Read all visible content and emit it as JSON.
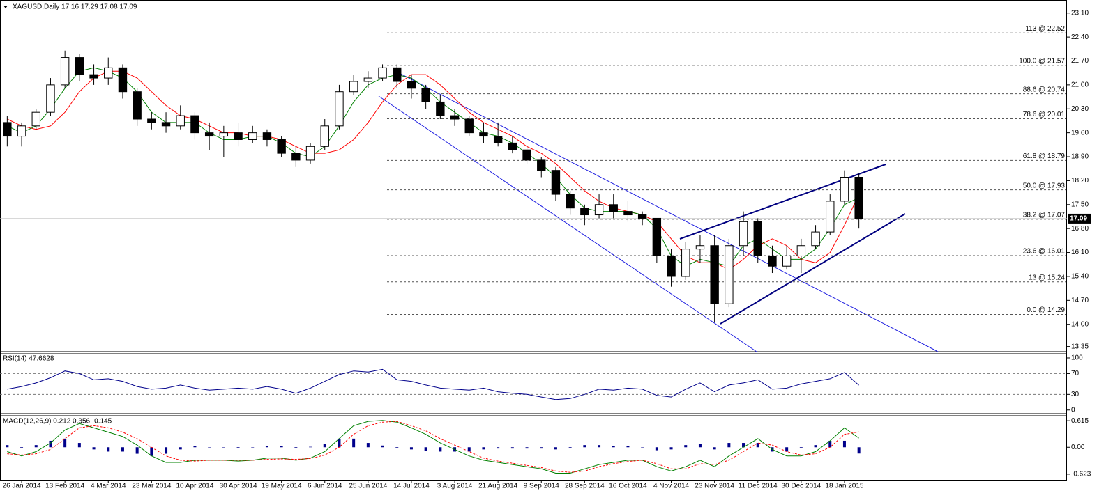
{
  "chart_data": [
    {
      "type": "candlestick",
      "title": "XAGUSD,Daily  17.16 17.29 17.08 17.09",
      "categories": [
        null,
        "26 Jan 2014",
        null,
        null,
        "13 Feb 2014",
        null,
        null,
        "4 Mar 2014",
        null,
        null,
        "23 Mar 2014",
        null,
        null,
        "10 Apr 2014",
        null,
        null,
        "30 Apr 2014",
        null,
        null,
        "19 May 2014",
        null,
        null,
        "6 Jun 2014",
        null,
        null,
        "25 Jun 2014",
        null,
        null,
        "14 Jul 2014",
        null,
        null,
        "3 Aug 2014",
        null,
        null,
        "21 Aug 2014",
        null,
        null,
        "9 Sep 2014",
        null,
        null,
        "28 Sep 2014",
        null,
        null,
        "16 Oct 2014",
        null,
        null,
        "4 Nov 2014",
        null,
        null,
        "23 Nov 2014",
        null,
        null,
        "11 Dec 2014",
        null,
        null,
        "30 Dec 2014",
        null,
        null,
        "18 Jan 2015",
        null
      ],
      "open": [
        19.9,
        19.5,
        19.8,
        20.2,
        21.0,
        21.8,
        21.3,
        21.2,
        21.5,
        20.8,
        20.0,
        19.9,
        19.8,
        20.1,
        19.6,
        19.5,
        19.6,
        19.4,
        19.6,
        19.4,
        19.0,
        18.8,
        19.2,
        19.8,
        20.8,
        21.1,
        21.2,
        21.5,
        21.1,
        20.9,
        20.5,
        20.1,
        20.0,
        19.6,
        19.5,
        19.3,
        19.1,
        18.8,
        18.5,
        17.8,
        17.4,
        17.2,
        17.5,
        17.3,
        17.2,
        17.1,
        16.0,
        15.4,
        16.2,
        16.3,
        14.6,
        16.3,
        17.0,
        16.0,
        15.7,
        16.0,
        16.3,
        16.7,
        17.6,
        18.3
      ],
      "high": [
        20.1,
        19.9,
        20.3,
        21.2,
        22.0,
        21.9,
        21.6,
        21.8,
        21.6,
        20.9,
        20.2,
        20.2,
        20.4,
        20.2,
        19.9,
        19.8,
        19.9,
        19.8,
        19.7,
        19.5,
        19.2,
        19.3,
        20.0,
        21.0,
        21.3,
        21.4,
        21.6,
        21.6,
        21.3,
        21.0,
        20.7,
        20.3,
        20.1,
        19.9,
        19.9,
        19.5,
        19.2,
        18.9,
        18.6,
        17.9,
        17.5,
        17.8,
        17.8,
        17.6,
        17.3,
        17.1,
        16.2,
        16.4,
        16.6,
        16.6,
        16.5,
        17.3,
        17.1,
        16.3,
        16.3,
        16.5,
        16.9,
        17.8,
        18.5,
        18.4
      ],
      "low": [
        19.2,
        19.2,
        19.7,
        20.1,
        20.9,
        21.1,
        21.0,
        21.0,
        20.6,
        19.8,
        19.7,
        19.6,
        19.7,
        19.4,
        19.1,
        18.9,
        19.2,
        19.3,
        19.2,
        18.9,
        18.6,
        18.7,
        19.1,
        19.7,
        20.7,
        20.9,
        21.1,
        20.9,
        20.6,
        20.3,
        20.0,
        19.8,
        19.5,
        19.3,
        19.2,
        19.0,
        18.7,
        18.3,
        17.6,
        17.2,
        16.9,
        17.1,
        17.1,
        17.0,
        16.9,
        15.8,
        15.1,
        15.3,
        15.8,
        14.05,
        14.5,
        16.0,
        15.8,
        15.5,
        15.6,
        15.5,
        16.2,
        16.6,
        17.5,
        16.8
      ],
      "close": [
        19.5,
        19.8,
        20.2,
        21.0,
        21.8,
        21.3,
        21.2,
        21.5,
        20.8,
        20.0,
        19.9,
        19.8,
        20.1,
        19.6,
        19.5,
        19.6,
        19.4,
        19.6,
        19.4,
        19.0,
        18.8,
        19.2,
        19.8,
        20.8,
        21.1,
        21.2,
        21.5,
        21.1,
        20.9,
        20.5,
        20.1,
        20.0,
        19.6,
        19.5,
        19.3,
        19.1,
        18.8,
        18.5,
        17.8,
        17.4,
        17.2,
        17.5,
        17.3,
        17.2,
        17.1,
        16.0,
        15.4,
        16.2,
        16.3,
        14.6,
        16.3,
        17.0,
        16.0,
        15.7,
        16.0,
        16.3,
        16.7,
        17.6,
        18.3,
        17.09
      ],
      "series": [
        {
          "color": "#ff0000",
          "values": [
            20.0,
            19.8,
            19.7,
            19.8,
            20.2,
            20.8,
            21.2,
            21.4,
            21.4,
            21.2,
            20.8,
            20.4,
            20.1,
            20.0,
            19.8,
            19.6,
            19.6,
            19.5,
            19.5,
            19.4,
            19.2,
            19.0,
            19.0,
            19.1,
            19.4,
            19.9,
            20.5,
            21.0,
            21.3,
            21.3,
            21.0,
            20.6,
            20.2,
            19.9,
            19.7,
            19.5,
            19.2,
            19.0,
            18.7,
            18.3,
            17.9,
            17.6,
            17.4,
            17.3,
            17.2,
            17.0,
            16.5,
            16.0,
            15.8,
            15.8,
            15.6,
            15.9,
            16.3,
            16.5,
            16.3,
            15.9,
            15.8,
            16.1,
            16.9,
            17.8
          ]
        },
        {
          "color": "#008000",
          "values": [
            19.8,
            19.6,
            19.8,
            20.3,
            20.9,
            21.4,
            21.5,
            21.4,
            21.2,
            20.8,
            20.2,
            19.9,
            19.9,
            19.9,
            19.6,
            19.4,
            19.4,
            19.5,
            19.5,
            19.3,
            19.0,
            18.9,
            19.2,
            19.8,
            20.5,
            21.0,
            21.2,
            21.3,
            21.2,
            20.9,
            20.5,
            20.2,
            19.9,
            19.6,
            19.5,
            19.3,
            19.0,
            18.7,
            18.3,
            17.8,
            17.4,
            17.3,
            17.3,
            17.3,
            17.2,
            16.8,
            16.0,
            15.7,
            15.9,
            15.8,
            15.7,
            16.3,
            16.5,
            16.2,
            15.9,
            15.9,
            16.2,
            16.8,
            17.5,
            17.7
          ]
        }
      ],
      "current_price": 17.09,
      "fib_levels": [
        {
          "value": 22.52,
          "label": "113 @ 22.52"
        },
        {
          "value": 21.57,
          "label": "100.0 @ 21.57"
        },
        {
          "value": 20.74,
          "label": "88.6 @ 20.74"
        },
        {
          "value": 20.01,
          "label": "78.6 @ 20.01"
        },
        {
          "value": 18.79,
          "label": "61.8 @ 18.79"
        },
        {
          "value": 17.93,
          "label": "50.0 @ 17.93"
        },
        {
          "value": 17.07,
          "label": "38.2 @ 17.07"
        },
        {
          "value": 16.01,
          "label": "23.6 @ 16.01"
        },
        {
          "value": 15.24,
          "label": "13 @ 15.24"
        },
        {
          "value": 14.29,
          "label": "0.0 @ 14.29"
        }
      ],
      "ylim": [
        13.2,
        23.4
      ],
      "yticks": [
        {
          "value": 23.1,
          "label": "23.10"
        },
        {
          "value": 22.4,
          "label": "22.40"
        },
        {
          "value": 21.7,
          "label": "21.70"
        },
        {
          "value": 21.0,
          "label": "21.00"
        },
        {
          "value": 20.3,
          "label": "20.30"
        },
        {
          "value": 19.6,
          "label": "19.60"
        },
        {
          "value": 18.9,
          "label": "18.90"
        },
        {
          "value": 18.2,
          "label": "18.20"
        },
        {
          "value": 17.5,
          "label": "17.50"
        },
        {
          "value": 16.8,
          "label": "16.80"
        },
        {
          "value": 16.1,
          "label": "16.10"
        },
        {
          "value": 15.4,
          "label": "15.40"
        },
        {
          "value": 14.7,
          "label": "14.70"
        },
        {
          "value": 14.0,
          "label": "14.00"
        },
        13.35
      ]
    },
    {
      "type": "line",
      "title": "RSI(14) 47.6628",
      "series": [
        {
          "color": "#00008b",
          "values": [
            40,
            45,
            52,
            62,
            75,
            70,
            58,
            60,
            55,
            45,
            40,
            42,
            48,
            42,
            38,
            40,
            42,
            40,
            45,
            40,
            32,
            42,
            55,
            68,
            75,
            73,
            78,
            58,
            55,
            48,
            42,
            40,
            38,
            42,
            35,
            32,
            30,
            25,
            20,
            22,
            30,
            40,
            38,
            42,
            40,
            28,
            25,
            40,
            52,
            35,
            48,
            52,
            58,
            40,
            42,
            50,
            55,
            60,
            72,
            47.6628
          ]
        }
      ],
      "levels": [
        70,
        30
      ],
      "ylim": [
        -7,
        108
      ],
      "yticks": [
        100,
        70,
        30,
        0
      ]
    },
    {
      "type": "macd",
      "title": "MACD(12,26,9) 0.212 0.356 -0.145",
      "histogram": {
        "color": "#00008b",
        "values": [
          0.05,
          -0.02,
          0.05,
          0.15,
          0.2,
          0.1,
          -0.05,
          -0.1,
          -0.1,
          -0.15,
          -0.2,
          -0.15,
          -0.05,
          0.02,
          0,
          0,
          -0.02,
          0,
          0.03,
          0.02,
          -0.02,
          0.01,
          0.08,
          0.2,
          0.2,
          0.1,
          0.04,
          -0.02,
          -0.05,
          -0.08,
          -0.1,
          -0.1,
          -0.1,
          -0.05,
          -0.03,
          -0.03,
          -0.03,
          -0.03,
          -0.05,
          -0.02,
          0.05,
          0.05,
          0.03,
          0.03,
          0,
          -0.07,
          -0.05,
          0.05,
          0.08,
          -0.05,
          0.1,
          0.1,
          0.1,
          -0.1,
          -0.1,
          -0.02,
          0.05,
          0.15,
          0.15,
          -0.145
        ]
      },
      "series": [
        {
          "color": "#008000",
          "values": [
            -0.1,
            -0.2,
            -0.1,
            0.1,
            0.4,
            0.55,
            0.45,
            0.35,
            0.25,
            0.05,
            -0.2,
            -0.35,
            -0.35,
            -0.3,
            -0.3,
            -0.3,
            -0.32,
            -0.3,
            -0.25,
            -0.25,
            -0.3,
            -0.25,
            -0.1,
            0.2,
            0.5,
            0.6,
            0.62,
            0.58,
            0.45,
            0.3,
            0.1,
            -0.05,
            -0.2,
            -0.3,
            -0.35,
            -0.4,
            -0.45,
            -0.5,
            -0.6,
            -0.6,
            -0.5,
            -0.4,
            -0.35,
            -0.3,
            -0.3,
            -0.45,
            -0.55,
            -0.45,
            -0.3,
            -0.45,
            -0.2,
            0.0,
            0.2,
            -0.05,
            -0.2,
            -0.2,
            -0.1,
            0.15,
            0.45,
            0.212
          ]
        },
        {
          "color": "#ff0000",
          "dashed": true,
          "values": [
            -0.15,
            -0.18,
            -0.15,
            -0.05,
            0.2,
            0.45,
            0.5,
            0.45,
            0.35,
            0.2,
            0.0,
            -0.2,
            -0.3,
            -0.32,
            -0.3,
            -0.3,
            -0.3,
            -0.3,
            -0.28,
            -0.27,
            -0.28,
            -0.26,
            -0.18,
            0.0,
            0.3,
            0.5,
            0.58,
            0.6,
            0.5,
            0.38,
            0.2,
            0.05,
            -0.1,
            -0.25,
            -0.32,
            -0.37,
            -0.42,
            -0.47,
            -0.55,
            -0.58,
            -0.55,
            -0.45,
            -0.38,
            -0.33,
            -0.3,
            -0.38,
            -0.5,
            -0.5,
            -0.38,
            -0.4,
            -0.3,
            -0.1,
            0.1,
            0.05,
            -0.1,
            -0.18,
            -0.15,
            0.0,
            0.3,
            0.356
          ]
        }
      ],
      "ylim": [
        -0.77,
        0.73
      ],
      "yticks": [
        0.615,
        {
          "value": 0,
          "label": "0.00"
        },
        -0.623
      ]
    }
  ]
}
